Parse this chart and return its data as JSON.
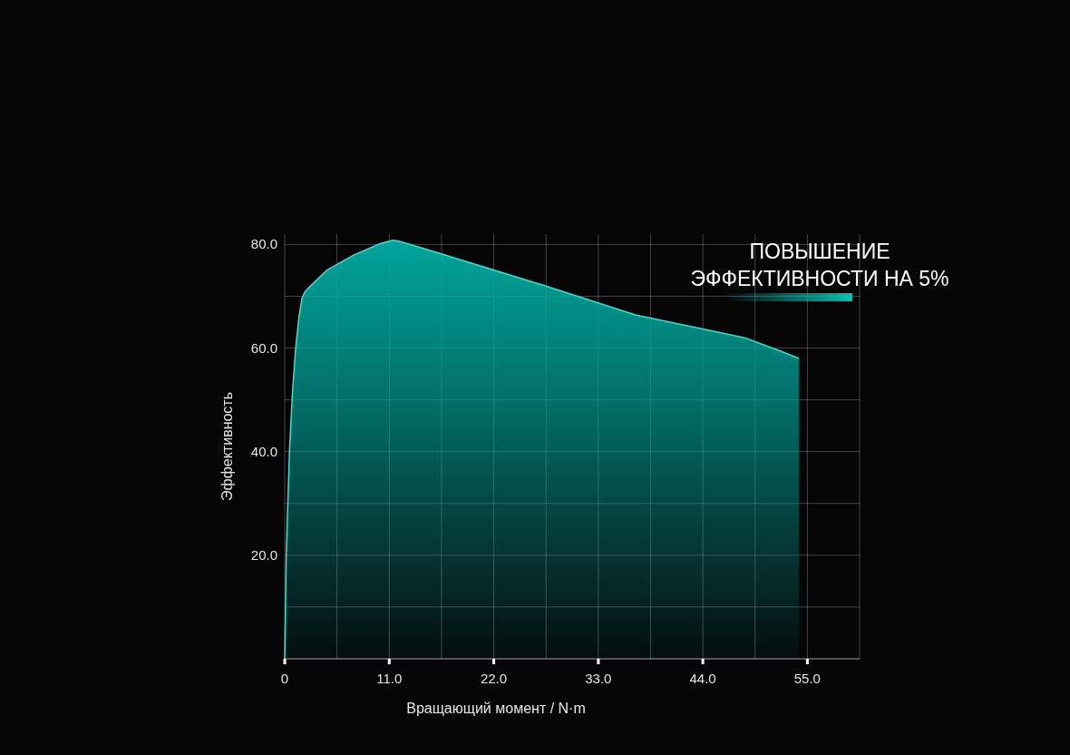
{
  "chart_data": {
    "type": "area",
    "xlabel": "Вращающий момент / N·m",
    "ylabel": "Эффективность",
    "annotations": [
      "ПОВЫШЕНИЕ ЭФФЕКТИВНОСТИ НА 5%"
    ],
    "xlim": [
      0,
      60.5
    ],
    "ylim": [
      0,
      82
    ],
    "xticks": [
      0,
      {
        "value": 5.5,
        "label": null
      },
      {
        "value": 11,
        "label": "11.0"
      },
      {
        "value": 16.5,
        "label": null
      },
      {
        "value": 22,
        "label": "22.0"
      },
      {
        "value": 27.5,
        "label": null
      },
      {
        "value": 33,
        "label": "33.0"
      },
      {
        "value": 38.5,
        "label": null
      },
      {
        "value": 44,
        "label": "44.0"
      },
      {
        "value": 49.5,
        "label": null
      },
      {
        "value": 55,
        "label": "55.0"
      },
      {
        "value": 60.5,
        "label": null
      }
    ],
    "yticks": [
      {
        "value": 10,
        "label": null
      },
      {
        "value": 20,
        "label": "20.0"
      },
      {
        "value": 30,
        "label": null
      },
      {
        "value": 40,
        "label": "40.0"
      },
      {
        "value": 50,
        "label": null
      },
      {
        "value": 60,
        "label": "60.0"
      },
      {
        "value": 70,
        "label": null
      },
      {
        "value": 80,
        "label": "80.0"
      }
    ],
    "grid": true,
    "series": [
      {
        "color": "#00a59b",
        "x": [
          0,
          0.16,
          0.5,
          0.8,
          1.15,
          1.5,
          1.8,
          2.1,
          2.5,
          4.4,
          7.3,
          10.1,
          11.4,
          12.1,
          16.8,
          27.4,
          36.9,
          48.4,
          52.2,
          54.1,
          54.1
        ],
        "values": [
          0,
          20,
          40,
          51,
          60,
          66,
          69.5,
          70.8,
          71.6,
          75,
          78,
          80.2,
          80.8,
          80.6,
          78,
          72,
          66.4,
          62,
          59.4,
          58,
          0
        ]
      }
    ]
  }
}
